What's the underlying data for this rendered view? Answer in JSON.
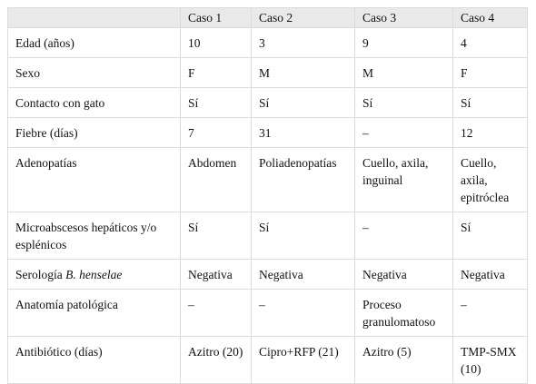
{
  "table": {
    "header": [
      "Caso 1",
      "Caso 2",
      "Caso 3",
      "Caso 4"
    ],
    "rows": [
      {
        "label": "Edad (años)",
        "values": [
          "10",
          "3",
          "9",
          "4"
        ]
      },
      {
        "label": "Sexo",
        "values": [
          "F",
          "M",
          "M",
          "F"
        ]
      },
      {
        "label": "Contacto con gato",
        "values": [
          "Sí",
          "Sí",
          "Sí",
          "Sí"
        ]
      },
      {
        "label": "Fiebre (días)",
        "values": [
          "7",
          "31",
          "–",
          "12"
        ]
      },
      {
        "label": "Adenopatías",
        "values": [
          "Abdomen",
          "Poliadenopatías",
          "Cuello, axila, inguinal",
          "Cuello, axila, epitróclea"
        ]
      },
      {
        "label": "Microabscesos hepáticos y/o esplénicos",
        "values": [
          "Sí",
          "Sí",
          "–",
          "Sí"
        ]
      },
      {
        "label": "Serología",
        "label_italic": "B. henselae",
        "values": [
          "Negativa",
          "Negativa",
          "Negativa",
          "Negativa"
        ]
      },
      {
        "label": "Anatomía patológica",
        "values": [
          "–",
          "–",
          "Proceso granulomatoso",
          "–"
        ]
      },
      {
        "label": "Antibiótico (días)",
        "values": [
          "Azitro (20)",
          "Cipro+RFP (21)",
          "Azitro (5)",
          "TMP-SMX (10)"
        ]
      }
    ]
  }
}
